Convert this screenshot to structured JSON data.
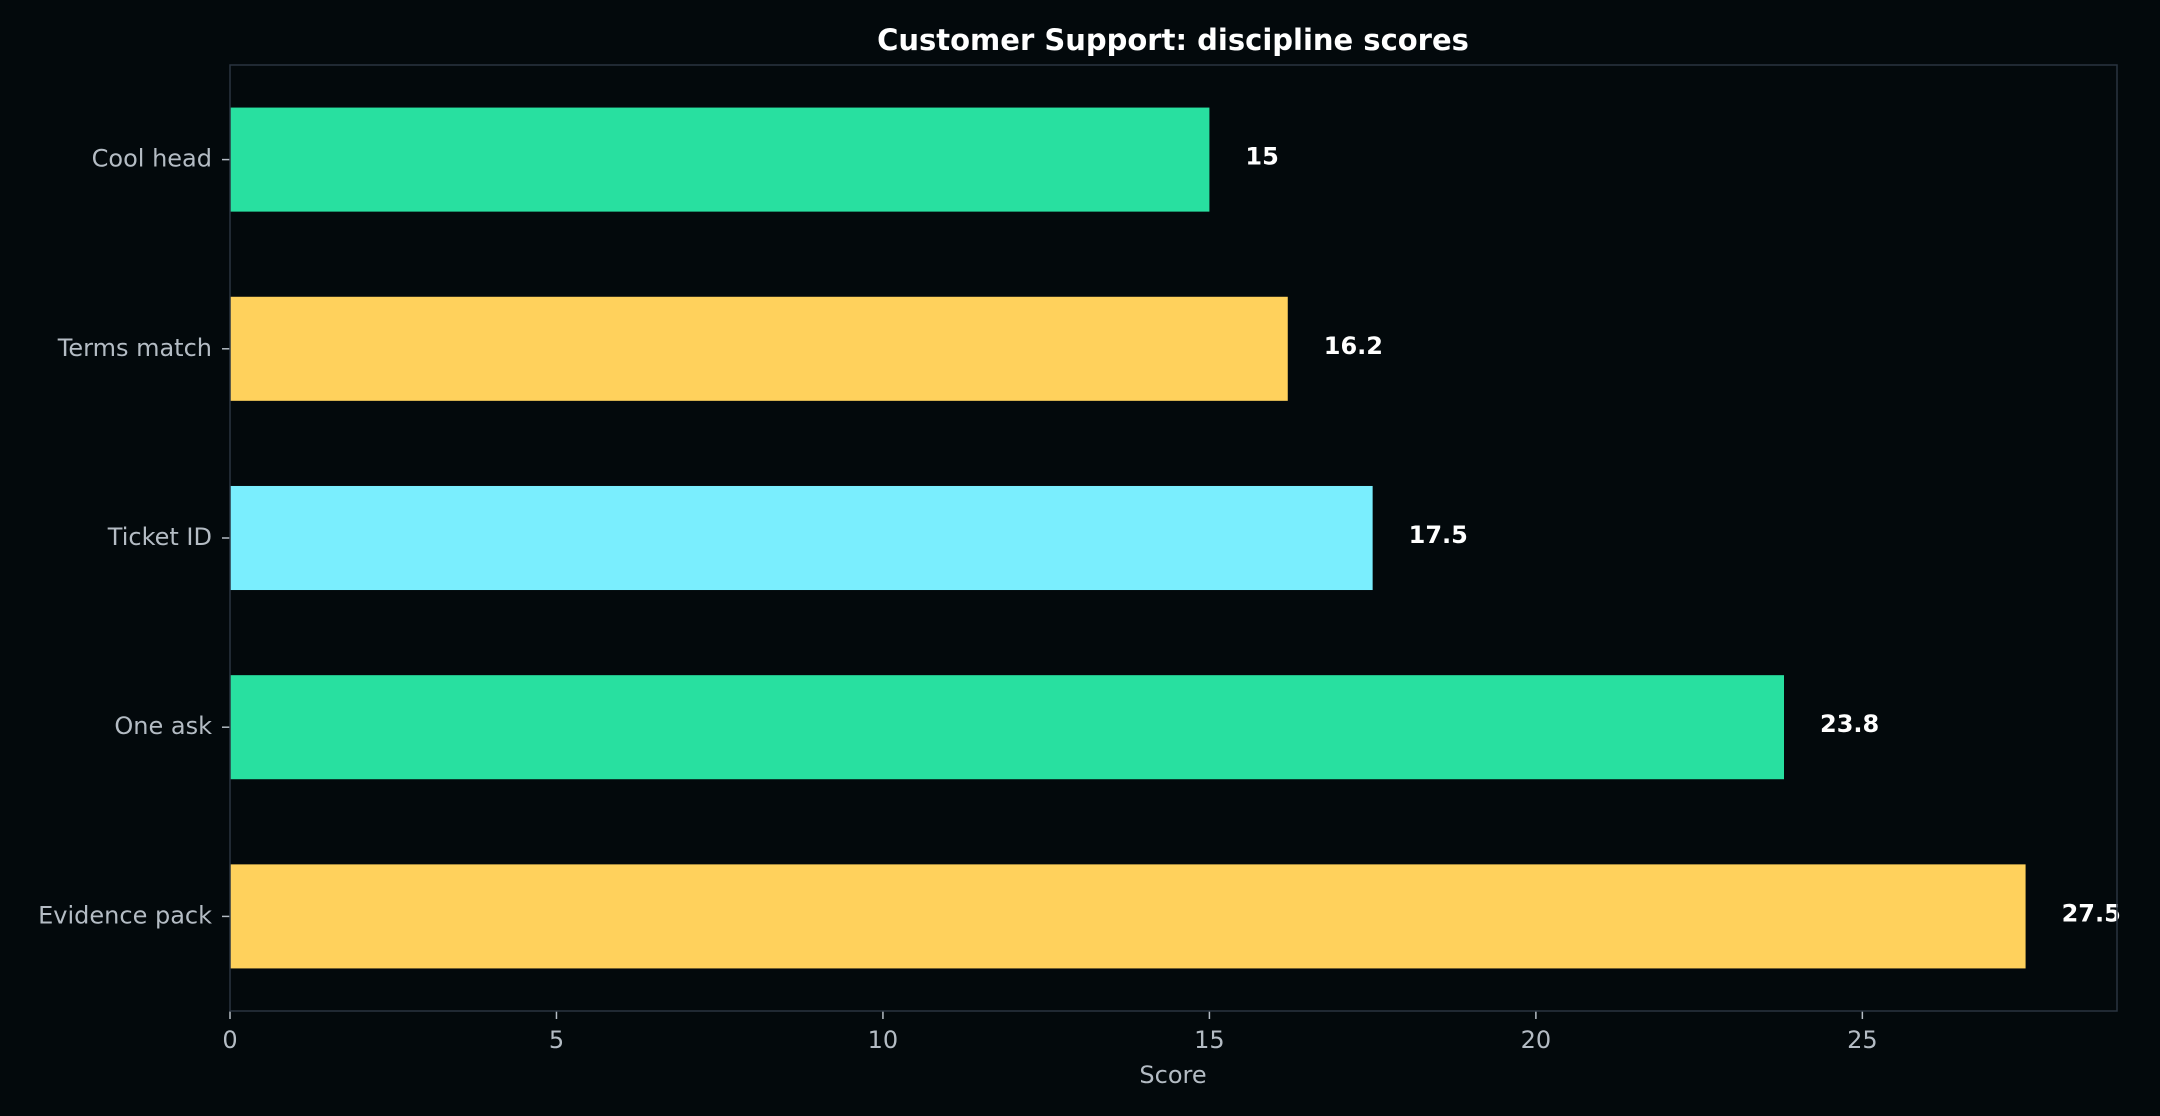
{
  "chart_data": {
    "type": "bar",
    "orientation": "horizontal",
    "title": "Customer Support: discipline scores",
    "xlabel": "Score",
    "ylabel": "",
    "xlim": [
      0,
      28.9
    ],
    "xticks": [
      0,
      5,
      10,
      15,
      20,
      25
    ],
    "grid": false,
    "categories": [
      "Cool head",
      "Terms match",
      "Ticket ID",
      "One ask",
      "Evidence pack"
    ],
    "values": [
      15,
      16.2,
      17.5,
      23.8,
      27.5
    ],
    "value_labels": [
      "15",
      "16.2",
      "17.5",
      "23.8",
      "27.5"
    ],
    "bar_colors": [
      "#28e0a0",
      "#ffd15c",
      "#7aeefe",
      "#28e0a0",
      "#ffd15c"
    ],
    "colors": {
      "background": "#03090c",
      "frame": "#2a3440",
      "text": "#b4bcc4",
      "title": "#ffffff"
    }
  }
}
